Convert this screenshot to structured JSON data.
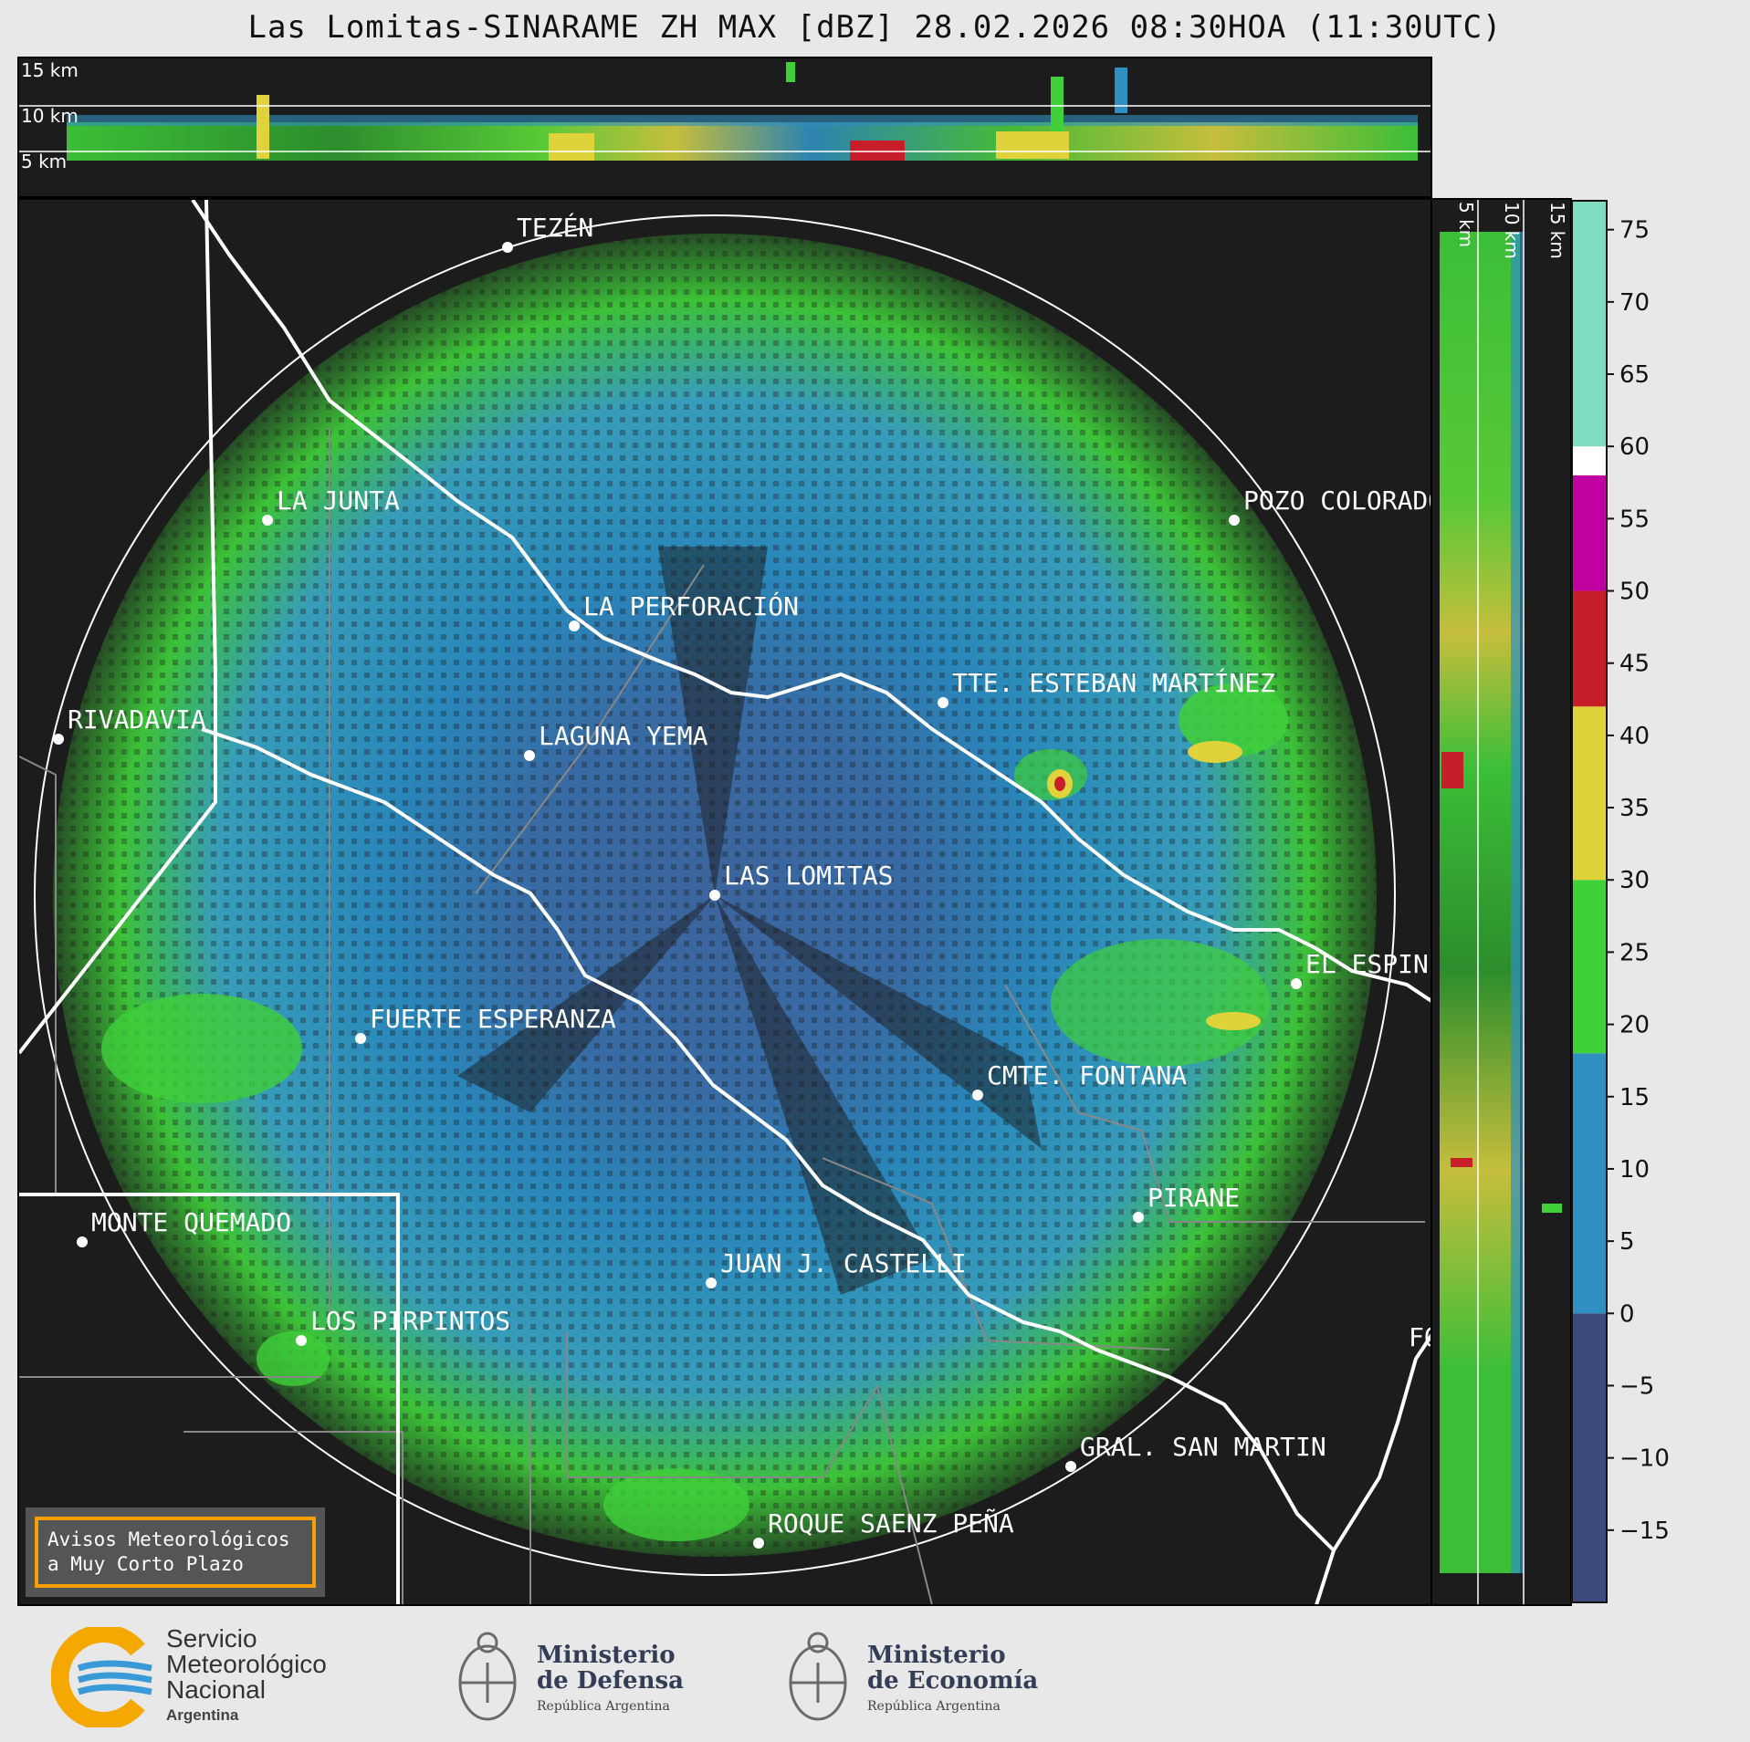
{
  "title": "Las Lomitas-SINARAME ZH MAX [dBZ] 28.02.2026 08:30HOA (11:30UTC)",
  "top_panel": {
    "height_labels": [
      "15 km",
      "10 km",
      "5 km"
    ]
  },
  "side_panel": {
    "height_labels": [
      "5 km",
      "10 km",
      "15 km"
    ]
  },
  "colorbar": {
    "ticks": [
      "75",
      "70",
      "65",
      "60",
      "55",
      "50",
      "45",
      "40",
      "35",
      "30",
      "25",
      "20",
      "15",
      "10",
      "5",
      "0",
      "−5",
      "−10",
      "−15"
    ],
    "colors": {
      "range_-20_0": "#3b4a7a",
      "range_0_18": "#2f8fc0",
      "range_18_30": "#3fd03a",
      "range_30_42": "#e0d23a",
      "range_42_50": "#c81e2a",
      "range_50_58": "#c000a0",
      "range_58_60": "#ffffff",
      "range_60_77": "#80dcc0"
    }
  },
  "cities": [
    {
      "name": "TEZÉN"
    },
    {
      "name": "LA JUNTA"
    },
    {
      "name": "POZO COLORADO"
    },
    {
      "name": "LA PERFORACIÓN"
    },
    {
      "name": "TTE. ESTEBAN MARTÍNEZ"
    },
    {
      "name": "RIVADAVIA"
    },
    {
      "name": "LAGUNA YEMA"
    },
    {
      "name": "LAS LOMITAS"
    },
    {
      "name": "EL ESPINILLO"
    },
    {
      "name": "FUERTE ESPERANZA"
    },
    {
      "name": "CMTE. FONTANA"
    },
    {
      "name": "PIRANE"
    },
    {
      "name": "MONTE QUEMADO"
    },
    {
      "name": "JUAN J. CASTELLI"
    },
    {
      "name": "LOS PIRPINTOS"
    },
    {
      "name": "GRAL. SAN MARTIN"
    },
    {
      "name": "ROQUE SAENZ PEÑA"
    },
    {
      "name": "FO"
    }
  ],
  "notice": {
    "line1": "Avisos Meteorológicos",
    "line2": "a Muy Corto Plazo"
  },
  "logos": {
    "smn": {
      "line1": "Servicio",
      "line2": "Meteorológico",
      "line3": "Nacional",
      "line4": "Argentina"
    },
    "defensa": {
      "line1": "Ministerio",
      "line2": "de Defensa",
      "line3": "República Argentina"
    },
    "economia": {
      "line1": "Ministerio",
      "line2": "de Economía",
      "line3": "República Argentina"
    }
  }
}
